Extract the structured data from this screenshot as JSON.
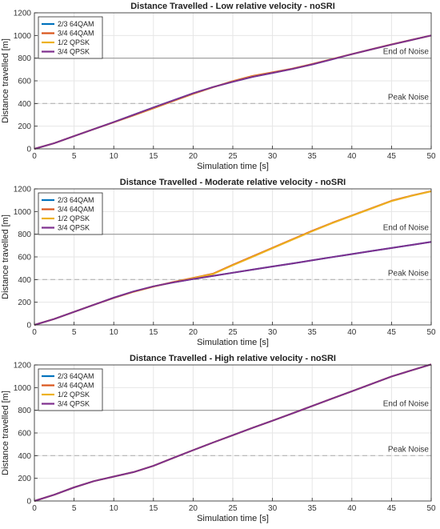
{
  "chart_data": [
    {
      "type": "line",
      "title": "Distance Travelled - Low relative velocity - noSRI",
      "xlabel": "Simulation time [s]",
      "ylabel": "Distance travelled [m]",
      "xlim": [
        0,
        50
      ],
      "ylim": [
        0,
        1200
      ],
      "xticks": [
        "0",
        "5",
        "10",
        "15",
        "20",
        "25",
        "30",
        "35",
        "40",
        "45",
        "50"
      ],
      "yticks": [
        "0",
        "200",
        "400",
        "600",
        "800",
        "1000",
        "1200"
      ],
      "grid": true,
      "legend_position": "top-left",
      "reference_lines": [
        {
          "label": "End of Noise",
          "y": 800,
          "style": "solid",
          "color": "#9a9a9a"
        },
        {
          "label": "Peak Noise",
          "y": 400,
          "style": "dashed",
          "color": "#b4b4b4"
        }
      ],
      "x": [
        0,
        2.5,
        5,
        7.5,
        10,
        12.5,
        15,
        17.5,
        20,
        22.5,
        25,
        27.5,
        30,
        32.5,
        35,
        37.5,
        40,
        42.5,
        45,
        47.5,
        50
      ],
      "series": [
        {
          "name": "2/3 64QAM",
          "color": "#0072BD",
          "values": [
            0,
            50,
            112,
            174,
            236,
            300,
            365,
            428,
            490,
            545,
            592,
            635,
            670,
            705,
            745,
            790,
            835,
            878,
            920,
            960,
            1000
          ]
        },
        {
          "name": "3/4 64QAM",
          "color": "#D95319",
          "values": [
            0,
            50,
            112,
            174,
            234,
            295,
            358,
            422,
            485,
            543,
            598,
            643,
            675,
            708,
            748,
            792,
            836,
            879,
            921,
            961,
            1000
          ]
        },
        {
          "name": "1/2 QPSK",
          "color": "#EDB120",
          "values": [
            0,
            50,
            112,
            174,
            235,
            297,
            361,
            425,
            487,
            544,
            595,
            639,
            672,
            706,
            746,
            791,
            835,
            878,
            920,
            960,
            1000
          ]
        },
        {
          "name": "3/4 QPSK",
          "color": "#7E2F8E",
          "values": [
            0,
            50,
            112,
            174,
            236,
            300,
            365,
            428,
            490,
            545,
            592,
            635,
            670,
            705,
            745,
            790,
            835,
            878,
            920,
            960,
            1000
          ]
        }
      ]
    },
    {
      "type": "line",
      "title": "Distance Travelled - Moderate relative velocity - noSRI",
      "xlabel": "Simulation time [s]",
      "ylabel": "Distance travelled [m]",
      "xlim": [
        0,
        50
      ],
      "ylim": [
        0,
        1200
      ],
      "xticks": [
        "0",
        "5",
        "10",
        "15",
        "20",
        "25",
        "30",
        "35",
        "40",
        "45",
        "50"
      ],
      "yticks": [
        "0",
        "200",
        "400",
        "600",
        "800",
        "1000",
        "1200"
      ],
      "grid": true,
      "legend_position": "top-left",
      "reference_lines": [
        {
          "label": "End of Noise",
          "y": 800,
          "style": "solid",
          "color": "#9a9a9a"
        },
        {
          "label": "Peak Noise",
          "y": 400,
          "style": "dashed",
          "color": "#b4b4b4"
        }
      ],
      "x": [
        0,
        2.5,
        5,
        7.5,
        10,
        12.5,
        15,
        17.5,
        20,
        22.5,
        25,
        27.5,
        30,
        32.5,
        35,
        37.5,
        40,
        42.5,
        45,
        47.5,
        50
      ],
      "series": [
        {
          "name": "2/3 64QAM",
          "color": "#0072BD",
          "values": [
            0,
            52,
            115,
            178,
            240,
            295,
            340,
            375,
            405,
            432,
            460,
            488,
            515,
            542,
            570,
            598,
            625,
            652,
            678,
            705,
            732
          ]
        },
        {
          "name": "3/4 64QAM",
          "color": "#D95319",
          "values": [
            0,
            52,
            115,
            178,
            238,
            292,
            338,
            378,
            415,
            452,
            530,
            605,
            680,
            755,
            830,
            900,
            965,
            1030,
            1095,
            1140,
            1180
          ]
        },
        {
          "name": "1/2 QPSK",
          "color": "#EDB120",
          "values": [
            0,
            52,
            115,
            178,
            239,
            293,
            339,
            376,
            412,
            448,
            526,
            601,
            676,
            751,
            826,
            897,
            962,
            1027,
            1092,
            1138,
            1178
          ]
        },
        {
          "name": "3/4 QPSK",
          "color": "#7E2F8E",
          "values": [
            0,
            52,
            115,
            178,
            240,
            295,
            340,
            375,
            405,
            432,
            460,
            488,
            515,
            542,
            570,
            598,
            625,
            652,
            678,
            705,
            732
          ]
        }
      ]
    },
    {
      "type": "line",
      "title": "Distance Travelled - High relative velocity - noSRI",
      "xlabel": "Simulation time [s]",
      "ylabel": "Distance travelled [m]",
      "xlim": [
        0,
        50
      ],
      "ylim": [
        0,
        1200
      ],
      "xticks": [
        "0",
        "5",
        "10",
        "15",
        "20",
        "25",
        "30",
        "35",
        "40",
        "45",
        "50"
      ],
      "yticks": [
        "0",
        "200",
        "400",
        "600",
        "800",
        "1000",
        "1200"
      ],
      "grid": true,
      "legend_position": "top-left",
      "reference_lines": [
        {
          "label": "End of Noise",
          "y": 800,
          "style": "solid",
          "color": "#9a9a9a"
        },
        {
          "label": "Peak Noise",
          "y": 400,
          "style": "dashed",
          "color": "#b4b4b4"
        }
      ],
      "x": [
        0,
        2.5,
        5,
        7.5,
        10,
        12.5,
        15,
        17.5,
        20,
        22.5,
        25,
        27.5,
        30,
        32.5,
        35,
        37.5,
        40,
        42.5,
        45,
        47.5,
        50
      ],
      "series": [
        {
          "name": "2/3 64QAM",
          "color": "#0072BD",
          "values": [
            0,
            55,
            120,
            175,
            215,
            255,
            310,
            380,
            448,
            515,
            580,
            645,
            708,
            772,
            838,
            903,
            968,
            1033,
            1098,
            1152,
            1205
          ]
        },
        {
          "name": "3/4 64QAM",
          "color": "#D95319",
          "values": [
            0,
            55,
            120,
            175,
            215,
            255,
            310,
            380,
            448,
            515,
            580,
            645,
            708,
            772,
            838,
            903,
            968,
            1033,
            1098,
            1152,
            1205
          ]
        },
        {
          "name": "1/2 QPSK",
          "color": "#EDB120",
          "values": [
            0,
            55,
            120,
            175,
            215,
            255,
            310,
            380,
            448,
            515,
            580,
            645,
            708,
            772,
            838,
            903,
            968,
            1033,
            1098,
            1152,
            1205
          ]
        },
        {
          "name": "3/4 QPSK",
          "color": "#7E2F8E",
          "values": [
            0,
            55,
            120,
            175,
            215,
            255,
            310,
            380,
            448,
            515,
            580,
            645,
            708,
            772,
            838,
            903,
            968,
            1033,
            1098,
            1152,
            1205
          ]
        }
      ]
    }
  ]
}
